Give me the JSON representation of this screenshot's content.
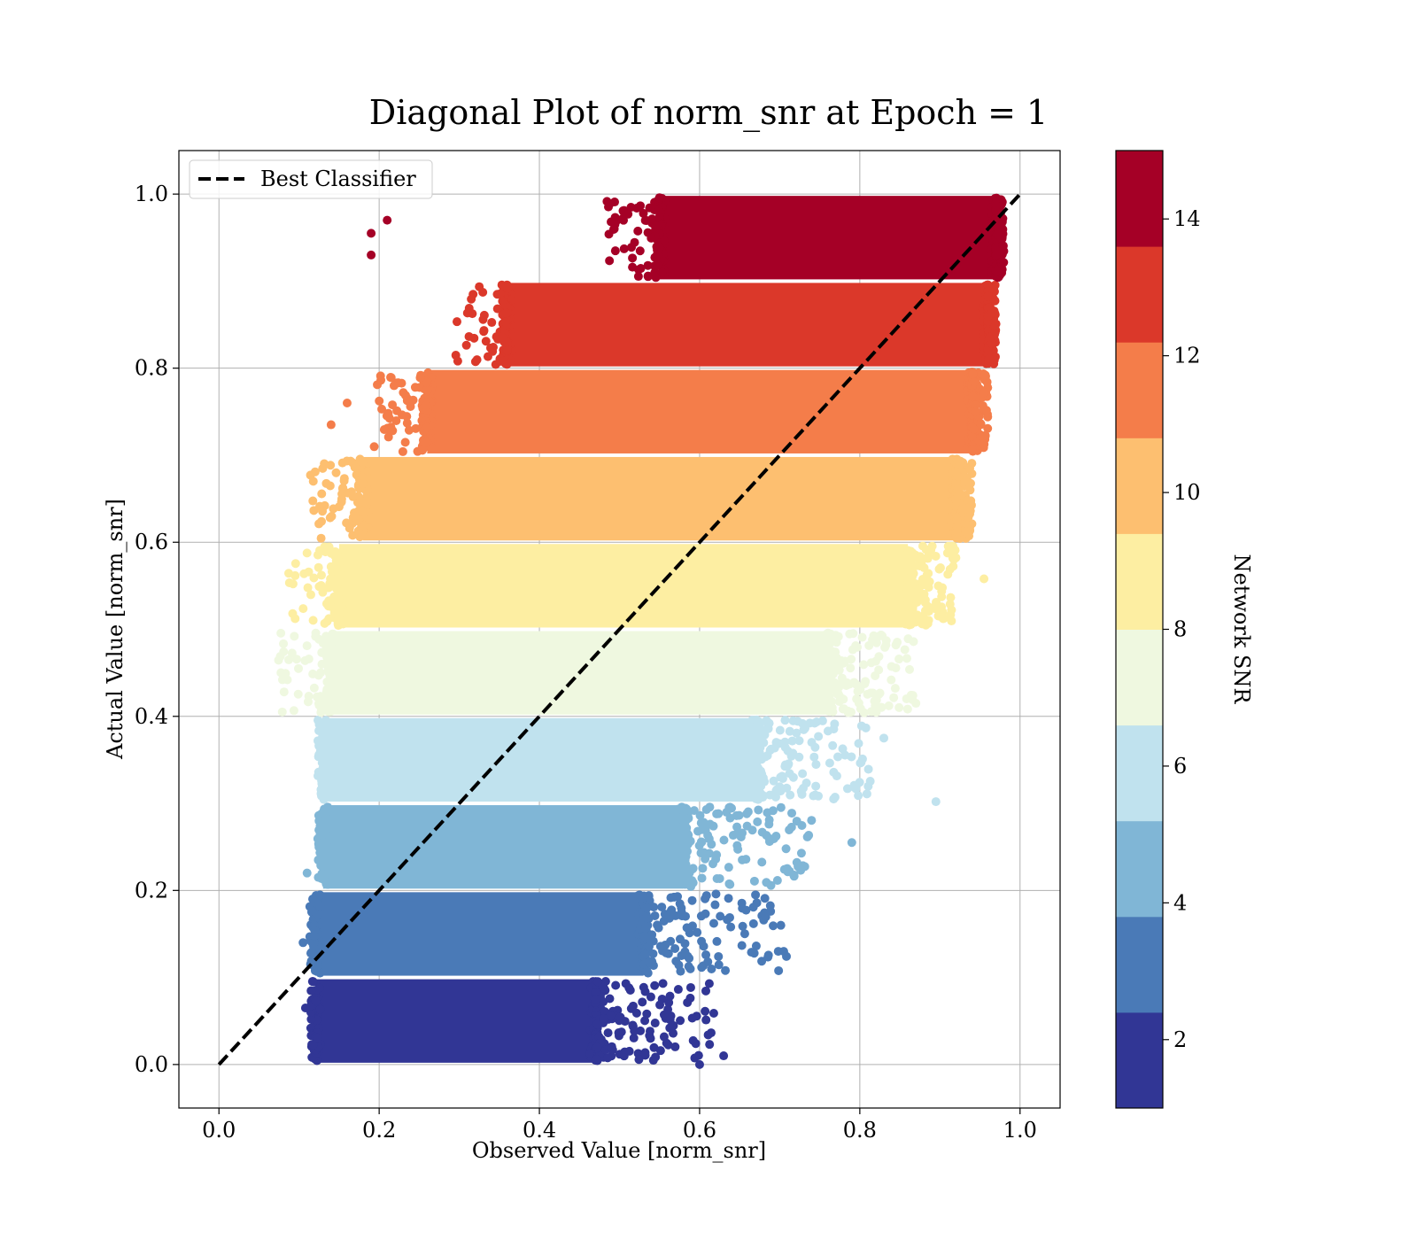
{
  "chart_data": {
    "type": "scatter",
    "title": "Diagonal Plot of norm_snr at Epoch = 1",
    "xlabel": "Observed Value [norm_snr]",
    "ylabel": "Actual Value [norm_snr]",
    "xlim": [
      -0.05,
      1.05
    ],
    "ylim": [
      -0.05,
      1.05
    ],
    "x_ticks": [
      "0.0",
      "0.2",
      "0.4",
      "0.6",
      "0.8",
      "1.0"
    ],
    "y_ticks": [
      "0.0",
      "0.2",
      "0.4",
      "0.6",
      "0.8",
      "1.0"
    ],
    "grid": true,
    "legend": {
      "placement": "top-left",
      "entries": [
        "Best Classifier"
      ]
    },
    "reference_line": {
      "name": "Best Classifier",
      "style": "dashed",
      "color": "#000000",
      "x": [
        0,
        1
      ],
      "y": [
        0,
        1
      ]
    },
    "colorbar": {
      "label": "Network SNR",
      "range": [
        1,
        15
      ],
      "ticks": [
        "2",
        "4",
        "6",
        "8",
        "10",
        "12",
        "14"
      ],
      "levels": [
        "#313695",
        "#4a7ab7",
        "#80b6d6",
        "#c0e2ee",
        "#eff8e0",
        "#fdeea2",
        "#fdbf70",
        "#f47d4a",
        "#db382a",
        "#a50026"
      ]
    },
    "bands": [
      {
        "y_range": [
          0.0,
          0.1
        ],
        "color": "#313695",
        "x_core": [
          0.12,
          0.47
        ],
        "x_tail_max": 0.62
      },
      {
        "y_range": [
          0.1,
          0.2
        ],
        "color": "#4a7ab7",
        "x_core": [
          0.12,
          0.53
        ],
        "x_tail_max": 0.71
      },
      {
        "y_range": [
          0.2,
          0.3
        ],
        "color": "#80b6d6",
        "x_core": [
          0.13,
          0.58
        ],
        "x_tail_max": 0.74
      },
      {
        "y_range": [
          0.3,
          0.4
        ],
        "color": "#c0e2ee",
        "x_core": [
          0.13,
          0.67
        ],
        "x_tail_max": 0.82
      },
      {
        "y_range": [
          0.4,
          0.5
        ],
        "color": "#eff8e0",
        "x_core": [
          0.14,
          0.76
        ],
        "x_tail_max": 0.87
      },
      {
        "y_range": [
          0.5,
          0.6
        ],
        "color": "#fdeea2",
        "x_core": [
          0.15,
          0.86
        ],
        "x_tail_max": 0.92
      },
      {
        "y_range": [
          0.6,
          0.7
        ],
        "color": "#fdbf70",
        "x_core": [
          0.18,
          0.92
        ],
        "x_tail_max": 0.94
      },
      {
        "y_range": [
          0.7,
          0.8
        ],
        "color": "#f47d4a",
        "x_core": [
          0.26,
          0.94
        ],
        "x_tail_max": 0.96
      },
      {
        "y_range": [
          0.8,
          0.9
        ],
        "color": "#db382a",
        "x_core": [
          0.36,
          0.96
        ],
        "x_tail_max": 0.97
      },
      {
        "y_range": [
          0.9,
          1.0
        ],
        "color": "#a50026",
        "x_core": [
          0.55,
          0.97
        ],
        "x_tail_max": 0.98
      }
    ],
    "outliers": [
      {
        "x": 0.955,
        "y": 0.558,
        "color": "#fdeea2"
      },
      {
        "x": 0.895,
        "y": 0.302,
        "color": "#c0e2ee"
      },
      {
        "x": 0.705,
        "y": 0.13,
        "color": "#4a7ab7"
      },
      {
        "x": 0.6,
        "y": 0.0,
        "color": "#313695"
      },
      {
        "x": 0.63,
        "y": 0.01,
        "color": "#313695"
      },
      {
        "x": 0.19,
        "y": 0.955,
        "color": "#a50026"
      },
      {
        "x": 0.21,
        "y": 0.97,
        "color": "#a50026"
      },
      {
        "x": 0.19,
        "y": 0.93,
        "color": "#a50026"
      },
      {
        "x": 0.14,
        "y": 0.735,
        "color": "#f47d4a"
      },
      {
        "x": 0.16,
        "y": 0.76,
        "color": "#f47d4a"
      },
      {
        "x": 0.11,
        "y": 0.22,
        "color": "#80b6d6"
      },
      {
        "x": 0.105,
        "y": 0.14,
        "color": "#4a7ab7"
      },
      {
        "x": 0.108,
        "y": 0.065,
        "color": "#313695"
      },
      {
        "x": 0.83,
        "y": 0.375,
        "color": "#c0e2ee"
      },
      {
        "x": 0.87,
        "y": 0.415,
        "color": "#eff8e0"
      },
      {
        "x": 0.79,
        "y": 0.255,
        "color": "#80b6d6"
      }
    ]
  }
}
